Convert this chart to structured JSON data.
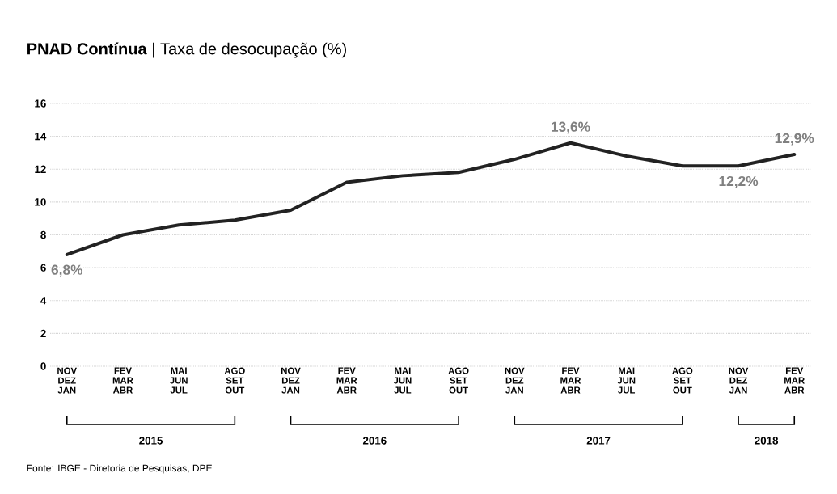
{
  "chart_data": {
    "type": "line",
    "title": "**PNAD Contínua** | Taxa de desocupação (%)",
    "categories": [
      "NOV DEZ JAN",
      "FEV MAR ABR",
      "MAI JUN JUL",
      "AGO SET OUT",
      "NOV DEZ JAN",
      "FEV MAR ABR",
      "MAI JUN JUL",
      "AGO SET OUT",
      "NOV DEZ JAN",
      "FEV MAR ABR",
      "MAI JUN JUL",
      "AGO SET OUT",
      "NOV DEZ JAN",
      "FEV MAR ABR"
    ],
    "series": [
      {
        "color": "#222222",
        "values": [
          6.8,
          8.0,
          8.6,
          8.9,
          9.5,
          11.2,
          11.6,
          11.8,
          12.6,
          13.6,
          12.8,
          12.2,
          12.2,
          12.9
        ],
        "value_labels": [
          "6,8%",
          null,
          null,
          null,
          null,
          null,
          null,
          null,
          null,
          "13,6%",
          null,
          null,
          "12,2%",
          "12,9%"
        ]
      }
    ],
    "ylim": [
      0,
      16
    ],
    "yticks": [
      0,
      2,
      4,
      6,
      8,
      10,
      12,
      14,
      16
    ],
    "grid": "y",
    "marker": "none",
    "line_style": "solid",
    "annotations": [
      "2015",
      "2016",
      "2017",
      "2018",
      "Fonte: IBGE - Diretoria de Pesquisas, DPE"
    ]
  }
}
